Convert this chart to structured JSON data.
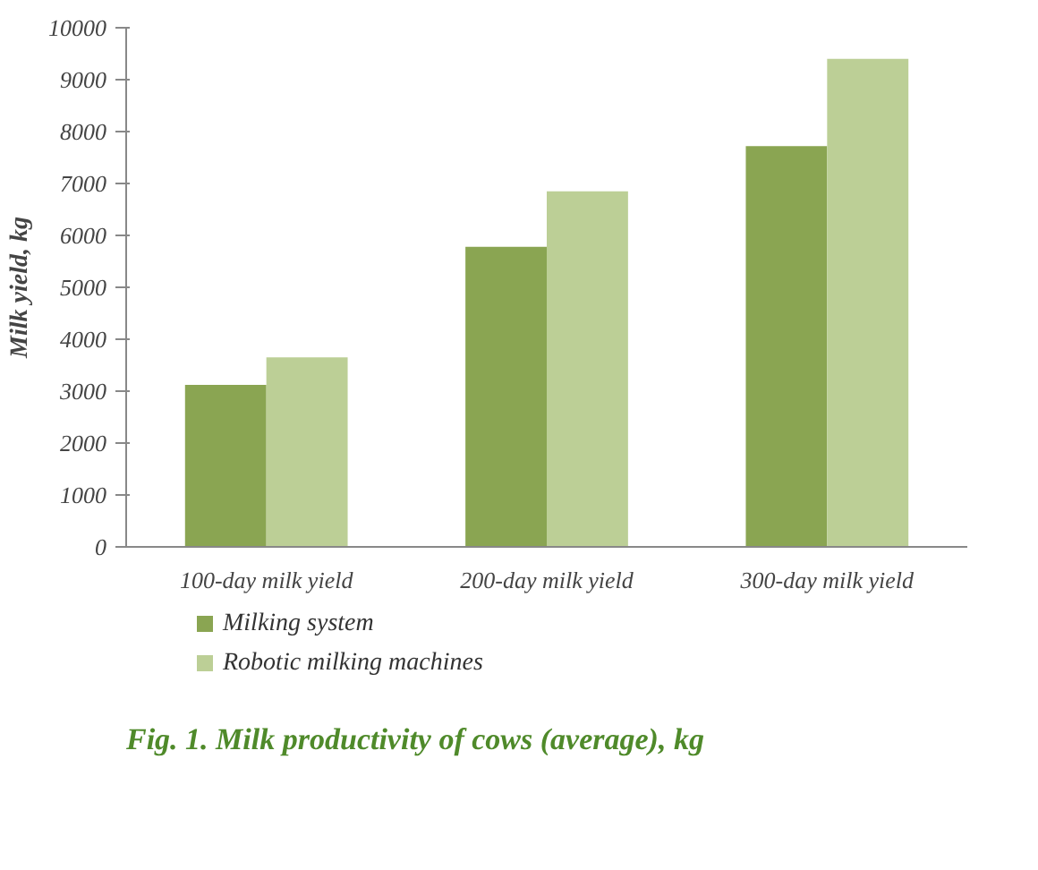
{
  "chart_data": {
    "type": "bar",
    "title": "Fig. 1. Milk productivity of cows (average), kg",
    "ylabel": "Milk yield, kg",
    "categories": [
      "100-day milk yield",
      "200-day milk yield",
      "300-day milk yield"
    ],
    "series": [
      {
        "name": "Milking system",
        "color": "#8aa552",
        "values": [
          3120,
          5780,
          7720
        ]
      },
      {
        "name": "Robotic milking machines",
        "color": "#bccf96",
        "values": [
          3650,
          6850,
          9400
        ]
      }
    ],
    "ylim": [
      0,
      10000
    ],
    "yticks": [
      0,
      1000,
      2000,
      3000,
      4000,
      5000,
      6000,
      7000,
      8000,
      9000,
      10000
    ],
    "grid": false,
    "legend": "bottom"
  }
}
